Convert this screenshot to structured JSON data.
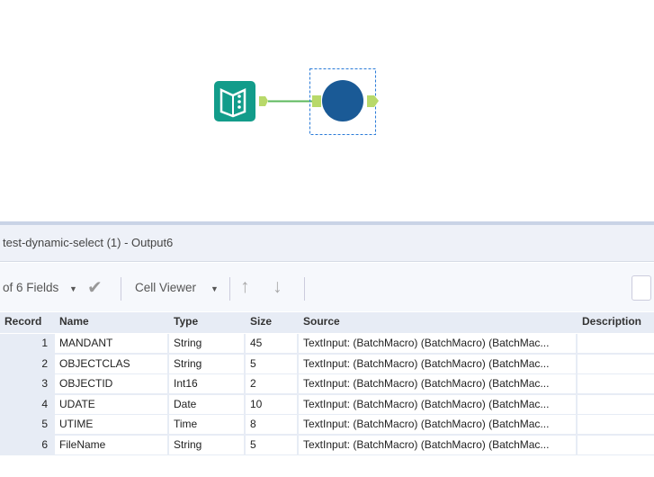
{
  "canvas": {
    "tools": [
      {
        "name": "Text Input",
        "icon": "book-icon",
        "color": "#129c8a"
      },
      {
        "name": "Macro",
        "icon": "circle-macro-icon",
        "color": "#1a5a96",
        "selected": true
      }
    ]
  },
  "results": {
    "title": "test-dynamic-select (1) - Output6",
    "toolbar": {
      "fields_label": "of 6 Fields",
      "cell_viewer_label": "Cell Viewer"
    },
    "columns": [
      "Record",
      "Name",
      "Type",
      "Size",
      "Source",
      "Description"
    ],
    "rows": [
      {
        "record": "1",
        "name": "MANDANT",
        "type": "String",
        "size": "45",
        "source": "TextInput: (BatchMacro) (BatchMacro) (BatchMac..."
      },
      {
        "record": "2",
        "name": "OBJECTCLAS",
        "type": "String",
        "size": "5",
        "source": "TextInput: (BatchMacro) (BatchMacro) (BatchMac..."
      },
      {
        "record": "3",
        "name": "OBJECTID",
        "type": "Int16",
        "size": "2",
        "source": "TextInput: (BatchMacro) (BatchMacro) (BatchMac..."
      },
      {
        "record": "4",
        "name": "UDATE",
        "type": "Date",
        "size": "10",
        "source": "TextInput: (BatchMacro) (BatchMacro) (BatchMac..."
      },
      {
        "record": "5",
        "name": "UTIME",
        "type": "Time",
        "size": "8",
        "source": "TextInput: (BatchMacro) (BatchMacro) (BatchMac..."
      },
      {
        "record": "6",
        "name": "FileName",
        "type": "String",
        "size": "5",
        "source": "TextInput: (BatchMacro) (BatchMacro) (BatchMac..."
      }
    ]
  }
}
